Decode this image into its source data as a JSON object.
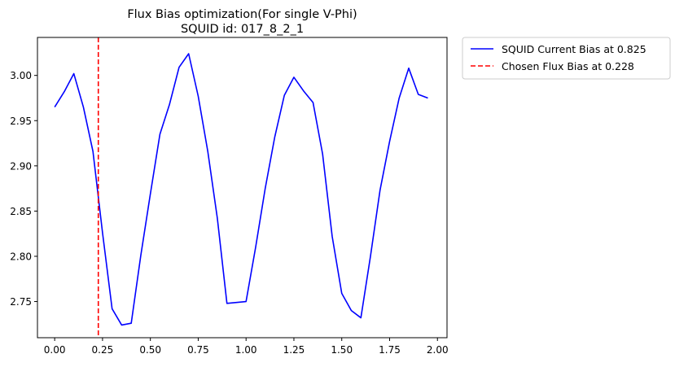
{
  "chart_data": {
    "type": "line",
    "title": "Flux Bias optimization(For single V-Phi)",
    "subtitle": "SQUID id: 017_8_2_1",
    "xlabel": "",
    "ylabel": "",
    "xlim": [
      -0.09,
      2.05
    ],
    "ylim": [
      2.71,
      3.042
    ],
    "x_ticks": [
      0.0,
      0.25,
      0.5,
      0.75,
      1.0,
      1.25,
      1.5,
      1.75,
      2.0
    ],
    "x_tick_labels": [
      "0.00",
      "0.25",
      "0.50",
      "0.75",
      "1.00",
      "1.25",
      "1.50",
      "1.75",
      "2.00"
    ],
    "y_ticks": [
      2.75,
      2.8,
      2.85,
      2.9,
      2.95,
      3.0
    ],
    "y_tick_labels": [
      "2.75",
      "2.80",
      "2.85",
      "2.90",
      "2.95",
      "3.00"
    ],
    "grid": false,
    "legend_position": "outside-top-right",
    "series": [
      {
        "name": "SQUID Current Bias at 0.825",
        "color": "#0000ff",
        "line_style": "solid",
        "x": [
          0.0,
          0.05,
          0.1,
          0.15,
          0.2,
          0.25,
          0.3,
          0.35,
          0.4,
          0.45,
          0.5,
          0.55,
          0.6,
          0.65,
          0.7,
          0.75,
          0.8,
          0.85,
          0.9,
          0.95,
          1.0,
          1.05,
          1.1,
          1.15,
          1.2,
          1.25,
          1.3,
          1.35,
          1.4,
          1.45,
          1.5,
          1.55,
          1.6,
          1.65,
          1.7,
          1.75,
          1.8,
          1.85,
          1.9,
          1.95
        ],
        "y": [
          2.965,
          2.982,
          3.002,
          2.965,
          2.916,
          2.826,
          2.742,
          2.724,
          2.726,
          2.801,
          2.869,
          2.935,
          2.968,
          3.009,
          3.024,
          2.977,
          2.916,
          2.842,
          2.748,
          2.749,
          2.75,
          2.81,
          2.875,
          2.932,
          2.978,
          2.998,
          2.983,
          2.97,
          2.913,
          2.822,
          2.759,
          2.74,
          2.732,
          2.8,
          2.873,
          2.927,
          2.975,
          3.008,
          2.979,
          2.975
        ]
      },
      {
        "name": "Chosen Flux Bias at 0.228",
        "color": "#ff0000",
        "line_style": "dashed",
        "orientation": "vertical",
        "x_value": 0.228
      }
    ]
  }
}
